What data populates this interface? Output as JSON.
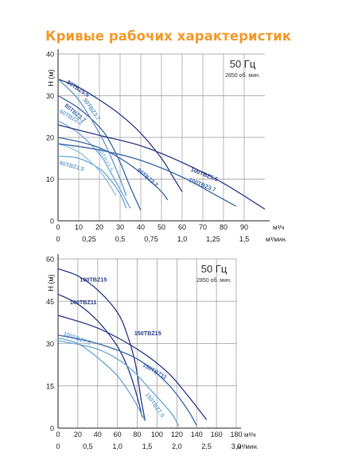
{
  "title": "Кривые рабочих характеристик",
  "chart_data": [
    {
      "type": "line",
      "ylabel": "H (м)",
      "xlabel": "м³/ч",
      "x2label": "м³/мин.",
      "freq": "50 Гц",
      "speed": "2850 об. мин.",
      "xlim": [
        0,
        100
      ],
      "ylim": [
        0,
        40
      ],
      "xticks": [
        0,
        10,
        20,
        30,
        40,
        50,
        60,
        70,
        80,
        90
      ],
      "yticks": [
        0,
        10,
        20,
        30,
        40
      ],
      "x2ticks": [
        {
          "v": 0,
          "label": "0"
        },
        {
          "v": 15,
          "label": "0,25"
        },
        {
          "v": 30,
          "label": "0,5"
        },
        {
          "v": 45,
          "label": "0,75"
        },
        {
          "v": 60,
          "label": "1,0"
        },
        {
          "v": 75,
          "label": "1,25"
        },
        {
          "v": 90,
          "label": "1,5"
        }
      ],
      "series": [
        {
          "name": "80TBZ5.5",
          "color": "#2C3E8C",
          "points": [
            [
              0,
              34
            ],
            [
              10,
              32
            ],
            [
              20,
              29
            ],
            [
              30,
              25.5
            ],
            [
              40,
              21
            ],
            [
              50,
              15
            ],
            [
              55,
              11
            ],
            [
              60,
              7
            ]
          ],
          "label_at": [
            4,
            33
          ],
          "label_angle": 33
        },
        {
          "name": "80TBZ3.7",
          "color": "#3B67A8",
          "points": [
            [
              0,
              30
            ],
            [
              10,
              27
            ],
            [
              20,
              22.5
            ],
            [
              25,
              19
            ],
            [
              30,
              14
            ],
            [
              35,
              8
            ],
            [
              40,
              2.5
            ]
          ],
          "label_at": [
            3,
            27.5
          ],
          "label_angle": 40
        },
        {
          "name": "50TBZ3.7",
          "color": "#6098C8",
          "points": [
            [
              0,
              34
            ],
            [
              10,
              29
            ],
            [
              20,
              21
            ],
            [
              25,
              16
            ],
            [
              30,
              10
            ],
            [
              33,
              6
            ]
          ],
          "label_at": [
            12,
            29
          ],
          "label_angle": 55
        },
        {
          "name": "60TBZ2.2",
          "color": "#6BA8D5",
          "points": [
            [
              0,
              24
            ],
            [
              10,
              21
            ],
            [
              20,
              16
            ],
            [
              25,
              12
            ],
            [
              30,
              7.5
            ],
            [
              35,
              3
            ]
          ],
          "label_at": [
            0.5,
            26
          ],
          "label_angle": 30
        },
        {
          "name": "80TBZ1.5",
          "color": "#6BA8D5",
          "points": [
            [
              0,
              15.5
            ],
            [
              10,
              15
            ],
            [
              20,
              12.5
            ],
            [
              25,
              10
            ],
            [
              30,
              6.5
            ],
            [
              33,
              3
            ]
          ],
          "label_at": [
            0.5,
            13.5
          ],
          "label_angle": 15
        },
        {
          "name": "50TBZ1.5",
          "color": "#8CBEE2",
          "points": [
            [
              0,
              18.5
            ],
            [
              10,
              16.5
            ],
            [
              20,
              12
            ],
            [
              25,
              8.5
            ],
            [
              28,
              6
            ]
          ],
          "label_at": [
            19,
            17
          ],
          "label_angle": 60
        },
        {
          "name": "80TBZ2.2",
          "color": "#3B67A8",
          "points": [
            [
              0,
              20
            ],
            [
              10,
              19
            ],
            [
              20,
              17.5
            ],
            [
              30,
              15
            ],
            [
              40,
              11.5
            ],
            [
              50,
              7
            ],
            [
              53,
              5
            ]
          ],
          "label_at": [
            38,
            12
          ],
          "label_angle": 40
        },
        {
          "name": "100TBZ5.5",
          "color": "#2C3E8C",
          "points": [
            [
              0,
              23
            ],
            [
              20,
              20.5
            ],
            [
              40,
              18
            ],
            [
              60,
              14
            ],
            [
              80,
              9
            ],
            [
              100,
              2.8
            ]
          ],
          "label_at": [
            64,
            12
          ],
          "label_angle": 22
        },
        {
          "name": "100TBZ3.7",
          "color": "#3B67A8",
          "points": [
            [
              0,
              18.5
            ],
            [
              20,
              17
            ],
            [
              40,
              14.5
            ],
            [
              60,
              10.5
            ],
            [
              75,
              6.5
            ],
            [
              86,
              3.5
            ]
          ],
          "label_at": [
            63,
            9.5
          ],
          "label_angle": 22
        }
      ]
    },
    {
      "type": "line",
      "ylabel": "H (м)",
      "xlabel": "м³/ч",
      "x2label": "м³/мин.",
      "freq": "50 Гц",
      "speed": "2850 об. мин.",
      "xlim": [
        0,
        180
      ],
      "ylim": [
        0,
        60
      ],
      "xticks": [
        0,
        20,
        40,
        60,
        80,
        100,
        120,
        140,
        160,
        180
      ],
      "yticks": [
        0,
        15,
        30,
        45,
        60
      ],
      "x2ticks": [
        {
          "v": 0,
          "label": "0"
        },
        {
          "v": 30,
          "label": "0,5"
        },
        {
          "v": 60,
          "label": "1,0"
        },
        {
          "v": 90,
          "label": "1,5"
        },
        {
          "v": 120,
          "label": "2,0"
        },
        {
          "v": 150,
          "label": "2,5"
        },
        {
          "v": 180,
          "label": "3,0"
        }
      ],
      "series": [
        {
          "name": "100TBZ15",
          "color": "#2C3E8C",
          "points": [
            [
              0,
              56.5
            ],
            [
              20,
              54
            ],
            [
              40,
              49
            ],
            [
              60,
              41
            ],
            [
              70,
              33
            ],
            [
              78,
              23
            ],
            [
              84,
              10
            ],
            [
              88,
              2.5
            ]
          ],
          "label_at": [
            22,
            52
          ],
          "label_angle": 0
        },
        {
          "name": "100TBZ11",
          "color": "#2C3E8C",
          "points": [
            [
              0,
              47.5
            ],
            [
              20,
              44
            ],
            [
              40,
              38
            ],
            [
              60,
              29
            ],
            [
              72,
              20
            ],
            [
              80,
              11
            ],
            [
              85,
              4
            ]
          ],
          "label_at": [
            12,
            44
          ],
          "label_angle": 0
        },
        {
          "name": "100TBZ7.5",
          "color": "#6BA8D5",
          "points": [
            [
              0,
              32
            ],
            [
              20,
              30
            ],
            [
              40,
              25
            ],
            [
              60,
              18.5
            ],
            [
              75,
              11
            ],
            [
              88,
              2.5
            ]
          ],
          "label_at": [
            5,
            33
          ],
          "label_angle": 20
        },
        {
          "name": "150TBZ15",
          "color": "#2C3E8C",
          "points": [
            [
              0,
              40
            ],
            [
              40,
              35.5
            ],
            [
              80,
              28
            ],
            [
              110,
              20
            ],
            [
              130,
              12
            ],
            [
              150,
              3
            ]
          ],
          "label_at": [
            77,
            33
          ],
          "label_angle": 0
        },
        {
          "name": "150TBZ11",
          "color": "#3B67A8",
          "points": [
            [
              0,
              33
            ],
            [
              40,
              30
            ],
            [
              80,
              24.5
            ],
            [
              110,
              16
            ],
            [
              130,
              7
            ],
            [
              140,
              1
            ]
          ],
          "label_at": [
            85,
            22
          ],
          "label_angle": 30
        },
        {
          "name": "150TBZ7.5",
          "color": "#6BA8D5",
          "points": [
            [
              0,
              31
            ],
            [
              40,
              28
            ],
            [
              70,
              22
            ],
            [
              95,
              13
            ],
            [
              115,
              5
            ],
            [
              122,
              0.5
            ]
          ],
          "label_at": [
            88,
            12
          ],
          "label_angle": 55
        }
      ]
    }
  ]
}
